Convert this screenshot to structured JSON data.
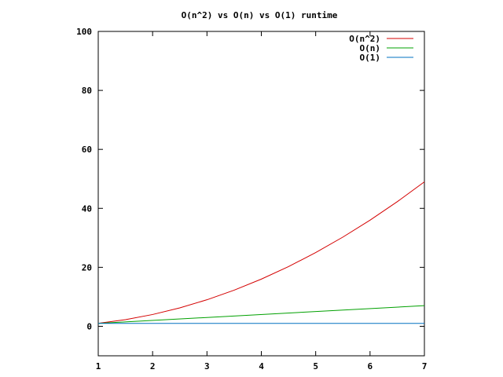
{
  "chart_data": {
    "type": "line",
    "title": "O(n^2) vs O(n) vs O(1) runtime",
    "xlabel": "",
    "ylabel": "",
    "xlim": [
      1,
      7
    ],
    "ylim": [
      -10,
      100
    ],
    "xticks": [
      "1",
      "2",
      "3",
      "4",
      "5",
      "6",
      "7"
    ],
    "yticks": [
      "0",
      "20",
      "40",
      "60",
      "80",
      "100"
    ],
    "grid": false,
    "legend_position": "top-right",
    "series": [
      {
        "name": "O(n^2)",
        "color": "#d40000",
        "x": [
          1,
          1.5,
          2,
          2.5,
          3,
          3.5,
          4,
          4.5,
          5,
          5.5,
          6,
          6.5,
          7
        ],
        "y": [
          1,
          2.25,
          4,
          6.25,
          9,
          12.25,
          16,
          20.25,
          25,
          30.25,
          36,
          42.25,
          49
        ]
      },
      {
        "name": "O(n)",
        "color": "#00a000",
        "x": [
          1,
          7
        ],
        "y": [
          1,
          7
        ]
      },
      {
        "name": "O(1)",
        "color": "#0070c0",
        "x": [
          1,
          7
        ],
        "y": [
          1,
          1
        ]
      }
    ]
  }
}
